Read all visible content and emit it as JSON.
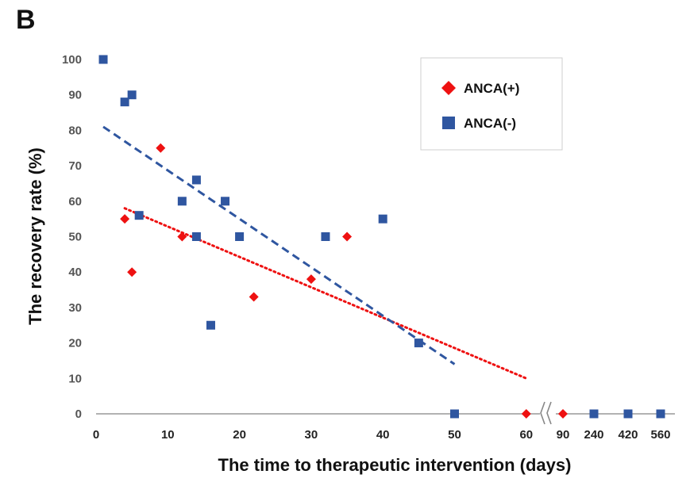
{
  "chart_data": {
    "type": "scatter",
    "panel_label": "B",
    "xlabel": "The time to therapeutic intervention (days)",
    "ylabel": "The recovery rate (%)",
    "ylim": [
      0,
      100
    ],
    "yticks": [
      0,
      10,
      20,
      30,
      40,
      50,
      60,
      70,
      80,
      90,
      100
    ],
    "xticks_linear": [
      0,
      10,
      20,
      30,
      40,
      50,
      60
    ],
    "xticks_broken": [
      90,
      240,
      420,
      560
    ],
    "axis_break_after": 60,
    "grid": false,
    "legend_position": "top-right",
    "series": [
      {
        "name": "ANCA(+)",
        "marker": "diamond",
        "color": "#ee1111",
        "points": [
          [
            4,
            55
          ],
          [
            5,
            40
          ],
          [
            9,
            75
          ],
          [
            12,
            50
          ],
          [
            22,
            33
          ],
          [
            30,
            38
          ],
          [
            35,
            50
          ],
          [
            60,
            0
          ],
          [
            90,
            0
          ]
        ],
        "trendline": {
          "style": "dotted",
          "from": [
            4,
            58
          ],
          "to": [
            60,
            10
          ]
        }
      },
      {
        "name": "ANCA(-)",
        "marker": "square",
        "color": "#2f56a0",
        "points": [
          [
            1,
            100
          ],
          [
            4,
            88
          ],
          [
            5,
            90
          ],
          [
            6,
            56
          ],
          [
            12,
            60
          ],
          [
            14,
            66
          ],
          [
            14,
            50
          ],
          [
            16,
            25
          ],
          [
            18,
            60
          ],
          [
            20,
            50
          ],
          [
            32,
            50
          ],
          [
            40,
            55
          ],
          [
            45,
            20
          ],
          [
            50,
            0
          ],
          [
            240,
            0
          ],
          [
            420,
            0
          ],
          [
            560,
            0
          ]
        ],
        "trendline": {
          "style": "dashed",
          "from": [
            1,
            81
          ],
          "to": [
            50,
            14
          ]
        }
      }
    ]
  }
}
